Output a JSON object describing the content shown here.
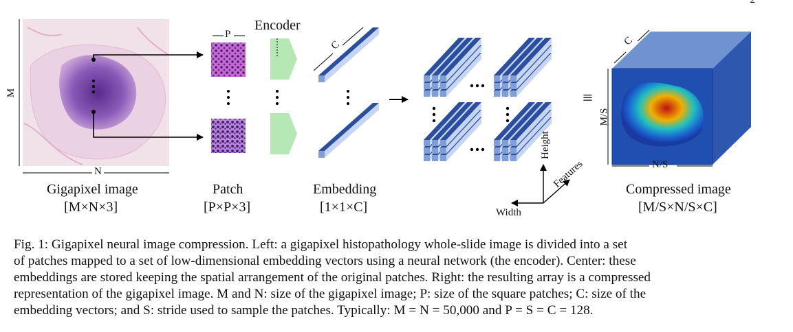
{
  "page_number": "2",
  "figure": {
    "wsi": {
      "side_label_m": "M",
      "bottom_label_n": "N",
      "title": "Gigapixel image",
      "dims": "[M×N×3]"
    },
    "patch": {
      "top_label": "P",
      "title": "Patch",
      "dims": "[P×P×3]"
    },
    "encoder": {
      "label": "Encoder"
    },
    "embedding": {
      "depth_label": "C",
      "title": "Embedding",
      "dims": "[1×1×C]"
    },
    "axes": {
      "height": "Height",
      "features": "Features",
      "width": "Width"
    },
    "equiv_symbol": "≡",
    "compressed": {
      "depth_label": "C",
      "side_label": "M/S",
      "bottom_label": "N/S",
      "title": "Compressed image",
      "dims": "[M/S×N/S×C]"
    },
    "colors": {
      "embedding_blue": "#7f9fd6",
      "encoder_green": "#b6e8b6",
      "tissue_purple": "#7a4aa8",
      "cube_blue": "#2b59b8"
    }
  },
  "caption": {
    "lines": [
      "Fig. 1:  Gigapixel neural image compression. Left: a gigapixel histopathology whole-slide image is divided into a set",
      "of patches mapped to a set of low-dimensional embedding vectors using a neural network (the encoder). Center: these",
      "embeddings are stored keeping the spatial arrangement of the original patches. Right: the resulting array is a compressed",
      "representation of the gigapixel image. M and N: size of the gigapixel image; P: size of the square patches; C: size of the",
      "embedding vectors; and S: stride used to sample the patches. Typically: M = N = 50,000 and P = S = C = 128."
    ]
  }
}
